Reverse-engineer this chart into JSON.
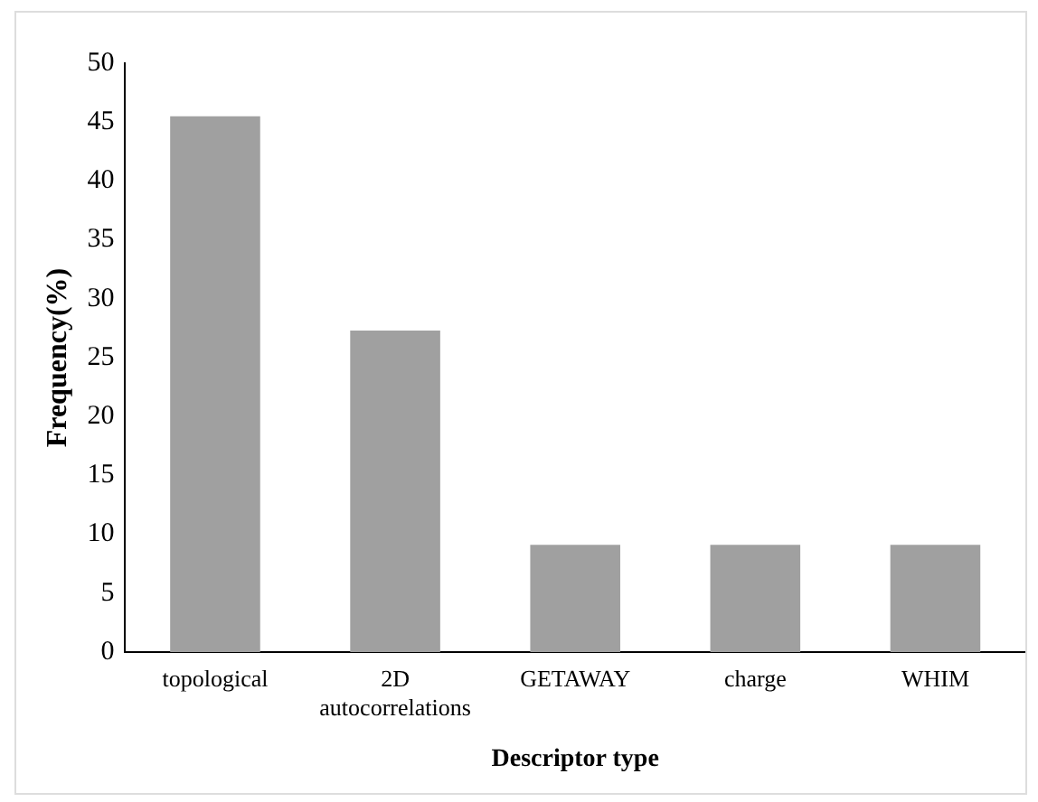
{
  "chart_data": {
    "type": "bar",
    "xlabel": "Descriptor type",
    "ylabel": "Frequency(%)",
    "categories": [
      "topological",
      "2D autocorrelations",
      "GETAWAY",
      "charge",
      "WHIM"
    ],
    "values": [
      45.5,
      27.3,
      9.1,
      9.1,
      9.1
    ],
    "color": "#a0a0a0",
    "ylim": [
      0,
      50
    ],
    "yticks": [
      0,
      5,
      10,
      15,
      20,
      25,
      30,
      35,
      40,
      45,
      50
    ],
    "grid": false,
    "legend": false
  }
}
